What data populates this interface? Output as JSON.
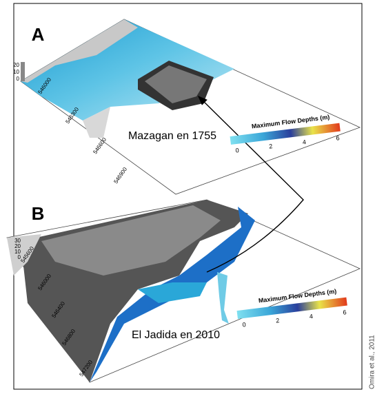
{
  "panels": [
    {
      "label": "A",
      "caption": "Mazagan en 1755",
      "z_ticks": [
        "20",
        "10",
        "0"
      ],
      "y_ticks": [
        "546000",
        "546300",
        "546600",
        "546900"
      ],
      "colorbar": {
        "title": "Maximum Flow Depths (m)",
        "ticks": [
          "0",
          "2",
          "4",
          "6"
        ]
      }
    },
    {
      "label": "B",
      "caption": "El Jadida en 2010",
      "z_ticks": [
        "30",
        "20",
        "10",
        "0"
      ],
      "y_ticks": [
        "545600",
        "546000",
        "546400",
        "546800",
        "547200"
      ],
      "colorbar": {
        "title": "Maximum Flow Depths (m)",
        "ticks": [
          "0",
          "2",
          "4",
          "6"
        ]
      }
    }
  ],
  "credit": "Omira et al., 2011"
}
